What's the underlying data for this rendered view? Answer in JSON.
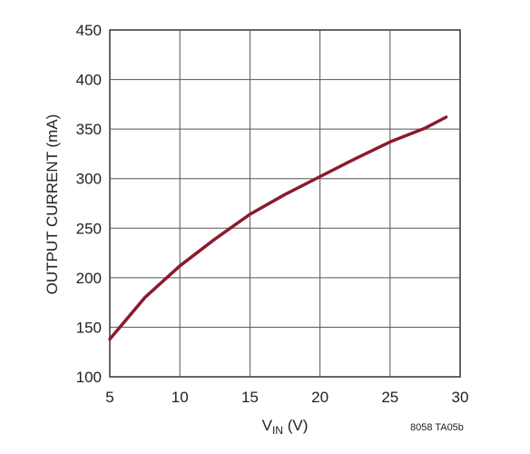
{
  "chart_data": {
    "type": "line",
    "xlabel_main": "V",
    "xlabel_sub": "IN",
    "xlabel_unit": " (V)",
    "ylabel": "OUTPUT CURRENT (mA)",
    "xlim": [
      5,
      30
    ],
    "ylim": [
      100,
      450
    ],
    "x_ticks": [
      "5",
      "10",
      "15",
      "20",
      "25",
      "30"
    ],
    "y_ticks": [
      "100",
      "150",
      "200",
      "250",
      "300",
      "350",
      "400",
      "450"
    ],
    "grid": true,
    "series": [
      {
        "color": "#8b1a2e",
        "x": [
          5,
          7.5,
          10,
          12.5,
          15,
          17.5,
          20,
          22.5,
          25,
          27.5,
          29
        ],
        "y": [
          138,
          180,
          212,
          239,
          264,
          284,
          302,
          320,
          337,
          351,
          362
        ]
      }
    ],
    "figure_id": "8058 TA05b"
  }
}
